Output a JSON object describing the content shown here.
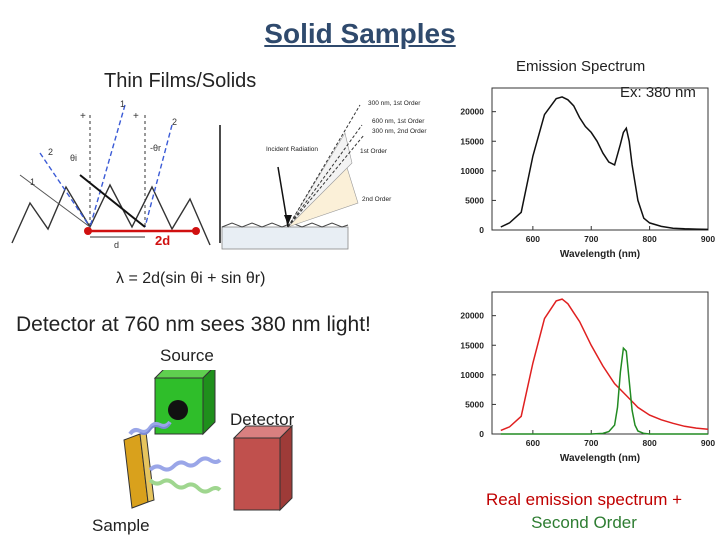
{
  "title": "Solid Samples",
  "left": {
    "subtitle": "Thin Films/Solids",
    "diagram_labels": {
      "one": "1",
      "two": "2",
      "plus": "+",
      "minus": "-",
      "theta_i": "θi",
      "theta_r": "-θr",
      "d": "d",
      "two_d": "2d",
      "incident": "Incident Radiation",
      "order_300_1": "300 nm, 1st Order",
      "order_600_1": "600 nm, 1st Order",
      "order_300_2": "300 nm, 2nd Order",
      "first_order": "1st Order",
      "second_order": "2nd Order"
    },
    "formula": "λ = 2d(sin θi + sin θr)",
    "statement": "Detector at 760 nm sees 380 nm light!",
    "source_label": "Source",
    "detector_label": "Detector",
    "sample_label": "Sample"
  },
  "right": {
    "spectrum_title": "Emission Spectrum",
    "excitation": "Ex: 380 nm",
    "caption_line1": "Real emission spectrum + ",
    "caption_line2": "Second Order",
    "colors": {
      "caption_red": "#c00000",
      "caption_green": "#2e7d32",
      "trace_black": "#111111",
      "trace_red": "#e02020",
      "trace_green": "#228b22"
    }
  },
  "chart_data": [
    {
      "type": "line",
      "title": "",
      "xlabel": "Wavelength (nm)",
      "ylabel": "",
      "xlim": [
        530,
        900
      ],
      "ylim": [
        0,
        24000
      ],
      "x_ticks": [
        "600",
        "700",
        "800",
        "900"
      ],
      "y_ticks": [
        "0",
        "5000",
        "10000",
        "15000",
        "20000"
      ],
      "series": [
        {
          "color": "#111111",
          "x": [
            545,
            560,
            580,
            600,
            620,
            640,
            650,
            660,
            670,
            680,
            690,
            700,
            710,
            720,
            730,
            740,
            750,
            755,
            760,
            765,
            770,
            780,
            790,
            800,
            820,
            840,
            860,
            880,
            900
          ],
          "y": [
            500,
            1200,
            3000,
            12500,
            19500,
            22200,
            22500,
            22000,
            21000,
            19000,
            17500,
            16500,
            15000,
            13000,
            11500,
            11000,
            14500,
            16500,
            17200,
            15000,
            11000,
            5000,
            2000,
            1200,
            600,
            300,
            200,
            150,
            100
          ]
        }
      ]
    },
    {
      "type": "line",
      "title": "",
      "xlabel": "Wavelength (nm)",
      "ylabel": "",
      "xlim": [
        530,
        900
      ],
      "ylim": [
        0,
        24000
      ],
      "x_ticks": [
        "600",
        "700",
        "800",
        "900"
      ],
      "y_ticks": [
        "0",
        "5000",
        "10000",
        "15000",
        "20000"
      ],
      "series": [
        {
          "color": "#e02020",
          "x": [
            545,
            560,
            580,
            600,
            620,
            640,
            650,
            660,
            670,
            680,
            690,
            700,
            720,
            740,
            760,
            780,
            800,
            820,
            840,
            860,
            880,
            900
          ],
          "y": [
            600,
            1200,
            3000,
            12000,
            19500,
            22500,
            22800,
            22000,
            20500,
            19000,
            17000,
            15000,
            11500,
            8500,
            6500,
            4500,
            3200,
            2400,
            1800,
            1300,
            1000,
            800
          ]
        },
        {
          "color": "#228b22",
          "x": [
            545,
            600,
            650,
            700,
            720,
            730,
            740,
            745,
            750,
            755,
            760,
            765,
            770,
            775,
            780,
            790,
            800,
            850,
            900
          ],
          "y": [
            0,
            0,
            0,
            0,
            100,
            400,
            1500,
            4500,
            10500,
            14500,
            14000,
            9000,
            4000,
            1500,
            500,
            100,
            0,
            0,
            0
          ]
        }
      ]
    }
  ]
}
